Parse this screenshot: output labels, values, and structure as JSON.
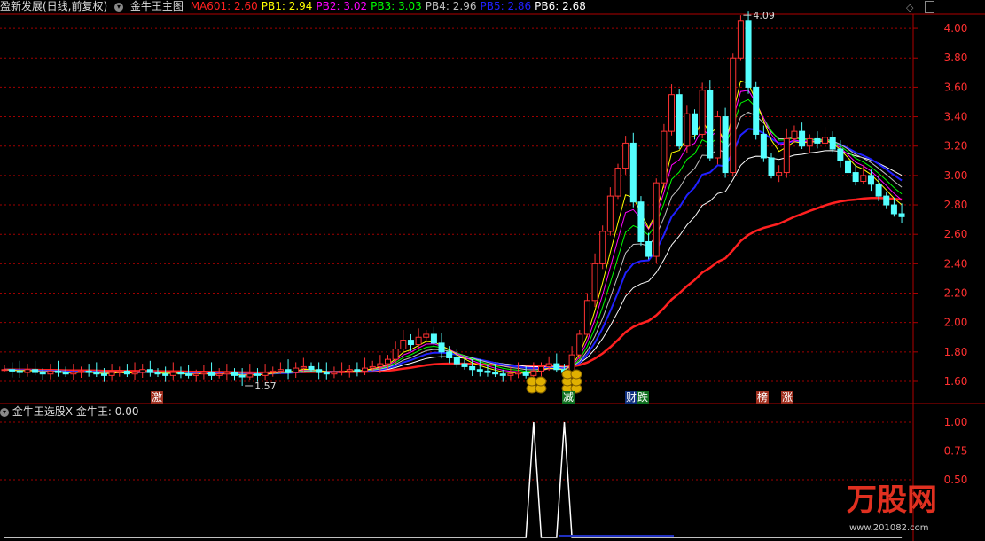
{
  "header": {
    "title": "盈新发展(日线,前复权)",
    "indicator": "金牛王主图",
    "legend": [
      {
        "label": "MA601",
        "value": "2.60",
        "color": "#ff2020"
      },
      {
        "label": "PB1",
        "value": "2.94",
        "color": "#ffff00"
      },
      {
        "label": "PB2",
        "value": "3.02",
        "color": "#ff00ff"
      },
      {
        "label": "PB3",
        "value": "3.03",
        "color": "#00ff00"
      },
      {
        "label": "PB4",
        "value": "2.96",
        "color": "#c0c0c0"
      },
      {
        "label": "PB5",
        "value": "2.86",
        "color": "#2020ff"
      },
      {
        "label": "PB6",
        "value": "2.68",
        "color": "#ffffff"
      }
    ]
  },
  "sub": {
    "indicator": "金牛王选股",
    "close": "X",
    "label": "金牛王:",
    "value": "0.00"
  },
  "annotations": {
    "high": "4.09",
    "low": "1.57"
  },
  "markers": [
    {
      "text": "激",
      "bg": "#a03020"
    },
    {
      "text": "减",
      "bg": "#107020"
    },
    {
      "text": "财",
      "bg": "#103080"
    },
    {
      "text": "跌",
      "bg": "#107020"
    },
    {
      "text": "榜",
      "bg": "#a03020"
    },
    {
      "text": "涨",
      "bg": "#a03020"
    }
  ],
  "watermark": "万股网 www.201082.com",
  "chart_data": {
    "type": "candlestick",
    "price_axis": {
      "ticks": [
        "1.60",
        "1.80",
        "2.00",
        "2.20",
        "2.40",
        "2.60",
        "2.80",
        "3.00",
        "3.20",
        "3.40",
        "3.60",
        "3.80",
        "4.00"
      ],
      "range": [
        1.6,
        4.0
      ]
    },
    "sub_axis": {
      "ticks": [
        "0.50",
        "0.75",
        "1.00"
      ],
      "range": [
        0,
        1
      ]
    },
    "closes": [
      1.68,
      1.67,
      1.66,
      1.68,
      1.66,
      1.65,
      1.67,
      1.66,
      1.65,
      1.66,
      1.67,
      1.66,
      1.65,
      1.64,
      1.66,
      1.67,
      1.65,
      1.66,
      1.68,
      1.66,
      1.65,
      1.64,
      1.66,
      1.65,
      1.64,
      1.65,
      1.66,
      1.64,
      1.65,
      1.66,
      1.64,
      1.63,
      1.65,
      1.64,
      1.66,
      1.67,
      1.68,
      1.66,
      1.69,
      1.7,
      1.68,
      1.66,
      1.65,
      1.66,
      1.67,
      1.68,
      1.67,
      1.69,
      1.7,
      1.72,
      1.75,
      1.82,
      1.88,
      1.85,
      1.9,
      1.92,
      1.86,
      1.8,
      1.76,
      1.72,
      1.7,
      1.68,
      1.67,
      1.66,
      1.65,
      1.64,
      1.65,
      1.66,
      1.64,
      1.67,
      1.7,
      1.72,
      1.68,
      1.66,
      1.78,
      1.92,
      2.15,
      2.4,
      2.62,
      2.86,
      3.05,
      3.22,
      2.82,
      2.55,
      2.45,
      2.95,
      3.3,
      3.55,
      3.2,
      3.42,
      3.28,
      3.58,
      3.12,
      3.4,
      3.02,
      3.8,
      4.05,
      3.6,
      3.28,
      3.12,
      3.0,
      3.02,
      3.25,
      3.3,
      3.2,
      3.25,
      3.22,
      3.26,
      3.18,
      3.1,
      3.02,
      2.96,
      3.0,
      2.94,
      2.86,
      2.8,
      2.74,
      2.72
    ],
    "signal_indices": [
      69,
      73
    ]
  }
}
